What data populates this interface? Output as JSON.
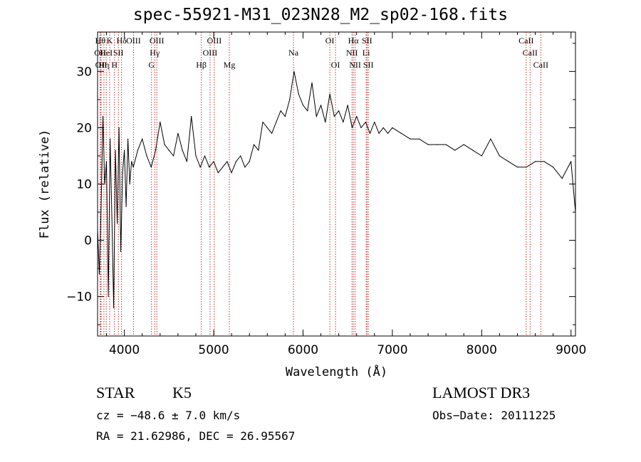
{
  "chart_data": {
    "type": "line",
    "title": "spec-55921-M31_023N28_M2_sp02-168.fits",
    "xlabel": "Wavelength (Å)",
    "ylabel": "Flux (relative)",
    "xlim": [
      3700,
      9050
    ],
    "ylim": [
      -17,
      37
    ],
    "xticks": [
      4000,
      5000,
      6000,
      7000,
      8000,
      9000
    ],
    "yticks": [
      -10,
      0,
      10,
      20,
      30
    ],
    "grid": false,
    "series": [
      {
        "name": "spectrum",
        "x": [
          3700,
          3720,
          3740,
          3760,
          3780,
          3800,
          3820,
          3840,
          3860,
          3880,
          3900,
          3920,
          3940,
          3960,
          3980,
          4000,
          4020,
          4040,
          4060,
          4080,
          4100,
          4150,
          4200,
          4250,
          4300,
          4350,
          4400,
          4450,
          4500,
          4550,
          4600,
          4650,
          4700,
          4750,
          4800,
          4850,
          4900,
          4950,
          5000,
          5050,
          5100,
          5150,
          5200,
          5250,
          5300,
          5350,
          5400,
          5450,
          5500,
          5550,
          5600,
          5650,
          5700,
          5750,
          5800,
          5850,
          5900,
          5950,
          6000,
          6050,
          6100,
          6150,
          6200,
          6250,
          6300,
          6350,
          6400,
          6450,
          6500,
          6550,
          6600,
          6650,
          6700,
          6750,
          6800,
          6850,
          6900,
          6950,
          7000,
          7100,
          7200,
          7300,
          7400,
          7500,
          7600,
          7700,
          7800,
          7900,
          8000,
          8100,
          8200,
          8300,
          8400,
          8500,
          8600,
          8700,
          8800,
          8900,
          9000,
          9050
        ],
        "y": [
          2,
          -6,
          6,
          22,
          10,
          14,
          -10,
          18,
          4,
          -12,
          16,
          3,
          20,
          -2,
          12,
          16,
          6,
          18,
          10,
          14,
          13,
          16,
          18,
          15,
          13,
          16,
          21,
          17,
          16,
          15,
          19,
          16,
          14,
          22,
          15,
          13,
          15,
          13,
          14,
          12,
          13,
          14,
          12,
          14,
          15,
          13,
          14,
          17,
          16,
          21,
          20,
          19,
          21,
          23,
          22,
          25,
          30,
          26,
          24,
          23,
          28,
          22,
          24,
          21,
          26,
          22,
          23,
          21,
          24,
          20,
          22,
          20,
          21,
          19,
          21,
          19,
          20,
          19,
          20,
          19,
          18,
          18,
          17,
          17,
          17,
          16,
          17,
          16,
          15,
          18,
          15,
          14,
          13,
          13,
          14,
          14,
          13,
          11,
          14,
          5
        ]
      }
    ],
    "lines": [
      {
        "x": 3730,
        "row": 1,
        "label": "Hθ"
      },
      {
        "x": 3729,
        "row": 2,
        "label": "OII"
      },
      {
        "x": 3740,
        "row": 3,
        "label": "OII"
      },
      {
        "x": 3771,
        "row": 3,
        "label": "Hη"
      },
      {
        "x": 3797,
        "row": 2,
        "label": "HeI"
      },
      {
        "x": 3835,
        "row": 1,
        "label": "K"
      },
      {
        "x": 3889,
        "row": 3,
        "label": "H"
      },
      {
        "x": 3933,
        "row": 2,
        "label": "SII"
      },
      {
        "x": 3968,
        "row": 1,
        "label": "Hδ"
      },
      {
        "x": 4102,
        "row": 1,
        "label": "OIII"
      },
      {
        "x": 4304,
        "row": 3,
        "label": "G"
      },
      {
        "x": 4340,
        "row": 2,
        "label": "Hγ"
      },
      {
        "x": 4363,
        "row": 1,
        "label": "OIII"
      },
      {
        "x": 4861,
        "row": 3,
        "label": "Hβ"
      },
      {
        "x": 4959,
        "row": 2,
        "label": "OIII"
      },
      {
        "x": 5007,
        "row": 1,
        "label": "OIII"
      },
      {
        "x": 5175,
        "row": 3,
        "label": "Mg"
      },
      {
        "x": 5893,
        "row": 2,
        "label": "Na"
      },
      {
        "x": 6300,
        "row": 1,
        "label": "OI"
      },
      {
        "x": 6363,
        "row": 3,
        "label": "OI"
      },
      {
        "x": 6548,
        "row": 2,
        "label": "NII"
      },
      {
        "x": 6563,
        "row": 1,
        "label": "Hα"
      },
      {
        "x": 6583,
        "row": 3,
        "label": "NII"
      },
      {
        "x": 6707,
        "row": 2,
        "label": "Li"
      },
      {
        "x": 6716,
        "row": 1,
        "label": "SII"
      },
      {
        "x": 6731,
        "row": 3,
        "label": "SII"
      },
      {
        "x": 8498,
        "row": 1,
        "label": "CaII"
      },
      {
        "x": 8542,
        "row": 2,
        "label": "CaII"
      },
      {
        "x": 8662,
        "row": 3,
        "label": "CaII"
      }
    ]
  },
  "info": {
    "object_class": "STAR",
    "subclass": "K5",
    "survey": "LAMOST DR3",
    "cz": "cz = −48.6 ± 7.0 km/s",
    "obs_date": "Obs−Date: 20111225",
    "coords": "RA =  21.62986, DEC =  26.95567"
  }
}
